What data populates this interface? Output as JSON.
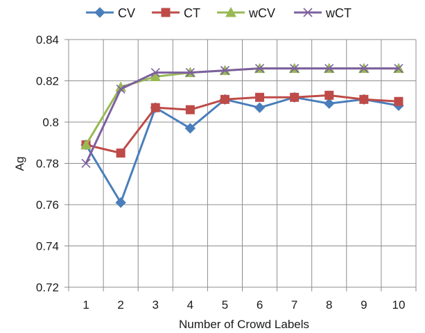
{
  "chart_data": {
    "type": "line",
    "title": "",
    "xlabel": "Number of Crowd Labels",
    "ylabel": "Ag",
    "x": [
      1,
      2,
      3,
      4,
      5,
      6,
      7,
      8,
      9,
      10
    ],
    "x_tick_labels": [
      "1",
      "2",
      "3",
      "4",
      "5",
      "6",
      "7",
      "8",
      "9",
      "10"
    ],
    "ylim": [
      0.72,
      0.84
    ],
    "y_ticks": [
      0.72,
      0.74,
      0.76,
      0.78,
      0.8,
      0.82,
      0.84
    ],
    "y_tick_labels": [
      "0.72",
      "0.74",
      "0.76",
      "0.78",
      "0.8",
      "0.82",
      "0.84"
    ],
    "grid": true,
    "legend_position": "top",
    "series": [
      {
        "name": "CV",
        "marker": "diamond",
        "color": "#4a7ebb",
        "values": [
          0.789,
          0.761,
          0.807,
          0.797,
          0.811,
          0.807,
          0.812,
          0.809,
          0.811,
          0.808
        ]
      },
      {
        "name": "CT",
        "marker": "square",
        "color": "#be4b48",
        "values": [
          0.789,
          0.785,
          0.807,
          0.806,
          0.811,
          0.812,
          0.812,
          0.813,
          0.811,
          0.81
        ]
      },
      {
        "name": "wCV",
        "marker": "triangle",
        "color": "#98b954",
        "values": [
          0.789,
          0.817,
          0.822,
          0.824,
          0.825,
          0.826,
          0.826,
          0.826,
          0.826,
          0.826
        ]
      },
      {
        "name": "wCT",
        "marker": "x",
        "color": "#7d60a0",
        "values": [
          0.78,
          0.816,
          0.824,
          0.824,
          0.825,
          0.826,
          0.826,
          0.826,
          0.826,
          0.826
        ]
      }
    ]
  }
}
